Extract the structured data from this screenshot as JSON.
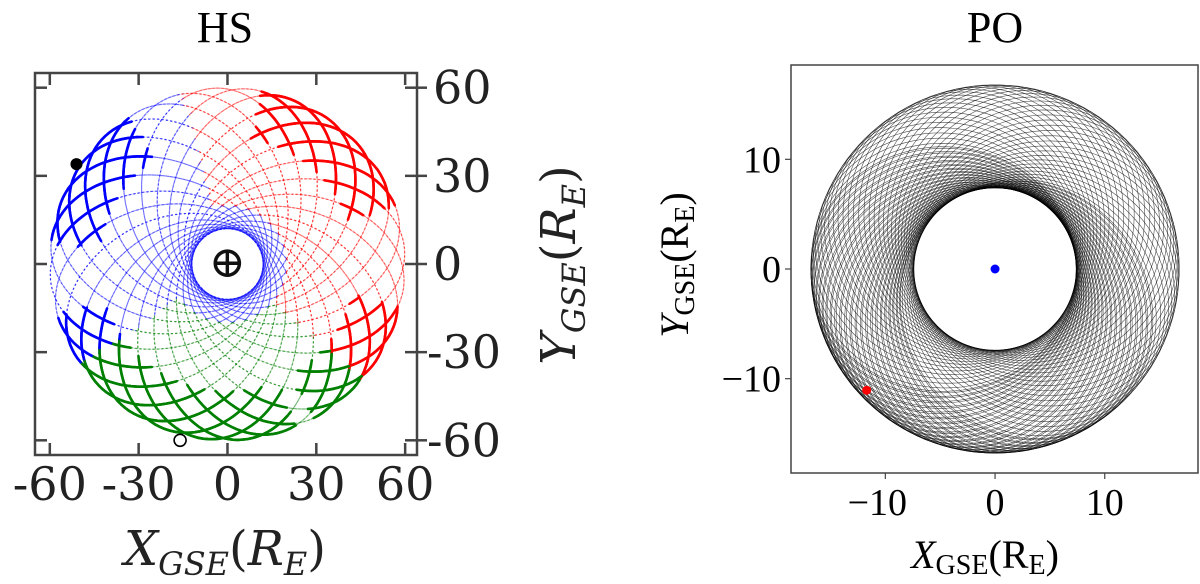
{
  "chart_data": [
    {
      "type": "line",
      "title": "HS",
      "xlabel": {
        "main": "X",
        "sub": "GSE",
        "open": "(",
        "unit": "R",
        "unit_sub": "E",
        "close": ")"
      },
      "ylabel": {
        "main": "Y",
        "sub": "GSE",
        "open": "(",
        "unit": "R",
        "unit_sub": "E",
        "close": ")"
      },
      "xlim": [
        -65,
        64
      ],
      "ylim": [
        -65,
        65
      ],
      "xticks": [
        -60,
        -30,
        0,
        30,
        60
      ],
      "xtick_labels": [
        "-60",
        "-30",
        "0",
        "30",
        "60"
      ],
      "yticks": [
        60,
        30,
        0,
        -30,
        -60
      ],
      "ytick_labels": [
        "60",
        "30",
        "0",
        "-30",
        "-60"
      ],
      "orbit_perigee": 12,
      "orbit_apogee": 60,
      "series_colors": {
        "dusk": "#ff0000",
        "dawn": "#0000ff",
        "night": "#008000"
      },
      "markers": [
        {
          "kind": "earth",
          "x": 0,
          "y": 0,
          "symbol": "⊕"
        },
        {
          "kind": "filled-circle",
          "x": -51,
          "y": 34,
          "color": "#000000"
        },
        {
          "kind": "open-circle",
          "x": -16,
          "y": -60,
          "color": "#000000"
        }
      ]
    },
    {
      "type": "line",
      "title": "PO",
      "xlabel": {
        "main": "X",
        "sub": "GSE",
        "open": "(",
        "unit": "R",
        "unit_sub": "E",
        "close": ")"
      },
      "ylabel": {
        "main": "Y",
        "sub": "GSE",
        "open": "(",
        "unit": "R",
        "unit_sub": "E",
        "close": ")"
      },
      "xlim": [
        -18.6,
        18.5
      ],
      "ylim": [
        -18.6,
        18.6
      ],
      "xticks": [
        -10,
        0,
        10
      ],
      "xtick_labels": [
        "−10",
        "0",
        "10"
      ],
      "yticks": [
        10,
        0,
        -10
      ],
      "ytick_labels": [
        "10",
        "0",
        "−10"
      ],
      "orbit_perigee": 7.4,
      "orbit_apogee": 16.8,
      "line_color": "#000000",
      "markers": [
        {
          "kind": "filled-circle",
          "x": 0,
          "y": 0,
          "color": "#0000ff"
        },
        {
          "kind": "filled-circle",
          "x": -11.7,
          "y": -11.05,
          "color": "#ff0000"
        }
      ]
    }
  ]
}
